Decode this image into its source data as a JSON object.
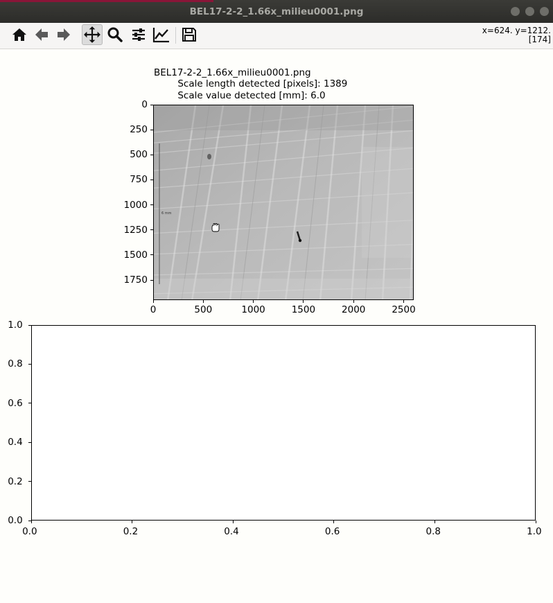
{
  "window": {
    "title": "BEL17-2-2_1.66x_milieu0001.png"
  },
  "toolbar": {
    "buttons": [
      {
        "name": "home-icon",
        "tooltip": "Home"
      },
      {
        "name": "back-icon",
        "tooltip": "Back"
      },
      {
        "name": "forward-icon",
        "tooltip": "Forward"
      },
      {
        "name": "pan-icon",
        "tooltip": "Pan",
        "active": true
      },
      {
        "name": "zoom-icon",
        "tooltip": "Zoom"
      },
      {
        "name": "configure-subplots-icon",
        "tooltip": "Subplots"
      },
      {
        "name": "edit-axis-icon",
        "tooltip": "Customize"
      },
      {
        "name": "save-icon",
        "tooltip": "Save"
      }
    ],
    "coords_line1": "x=624. y=1212.",
    "coords_line2": "[174]"
  },
  "plot1": {
    "title_line1": "BEL17-2-2_1.66x_milieu0001.png",
    "title_line2": "        Scale length detected [pixels]: 1389",
    "title_line3": "        Scale value detected [mm]: 6.0",
    "scale_bar_label": "6 mm",
    "xticks": [
      "0",
      "500",
      "1000",
      "1500",
      "2000",
      "2500"
    ],
    "yticks": [
      "0",
      "250",
      "500",
      "750",
      "1000",
      "1250",
      "1500",
      "1750"
    ]
  },
  "plot2": {
    "xticks": [
      "0.0",
      "0.2",
      "0.4",
      "0.6",
      "0.8",
      "1.0"
    ],
    "yticks": [
      "1.0",
      "0.8",
      "0.6",
      "0.4",
      "0.2",
      "0.0"
    ]
  },
  "chart_data": [
    {
      "type": "image",
      "title": "BEL17-2-2_1.66x_milieu0001.png\n        Scale length detected [pixels]: 1389\n        Scale value detected [mm]: 6.0",
      "xlim": [
        0,
        2600
      ],
      "ylim": [
        1950,
        0
      ],
      "xticks": [
        0,
        500,
        1000,
        1500,
        2000,
        2500
      ],
      "yticks": [
        0,
        250,
        500,
        750,
        1000,
        1250,
        1500,
        1750
      ]
    },
    {
      "type": "line",
      "series": [],
      "xlim": [
        0,
        1
      ],
      "ylim": [
        0,
        1
      ],
      "xticks": [
        0.0,
        0.2,
        0.4,
        0.6,
        0.8,
        1.0
      ],
      "yticks": [
        0.0,
        0.2,
        0.4,
        0.6,
        0.8,
        1.0
      ]
    }
  ],
  "colors": {
    "titlebar": "#2c2c29",
    "accent": "#8a1538",
    "figure_bg": "#fefefb"
  }
}
